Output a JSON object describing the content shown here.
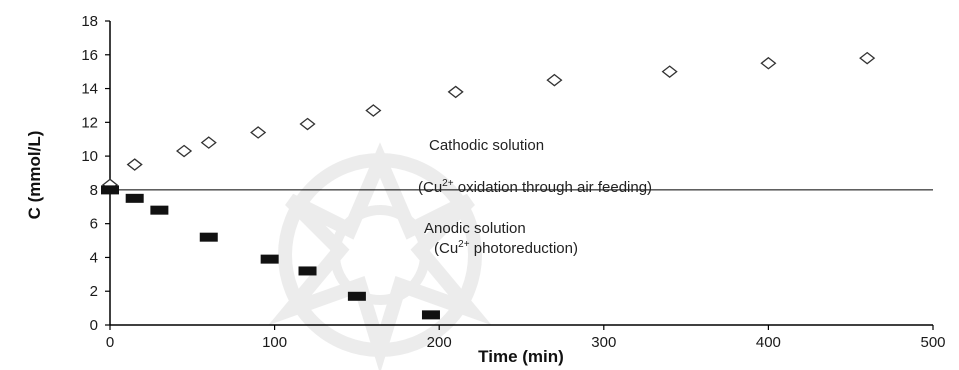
{
  "chart_data": {
    "type": "scatter",
    "xlabel": "Time (min)",
    "ylabel": "C (mmol/L)",
    "xlim": [
      0,
      500
    ],
    "ylim": [
      0,
      18
    ],
    "xticks": [
      0,
      100,
      200,
      300,
      400,
      500
    ],
    "yticks": [
      0,
      2,
      4,
      6,
      8,
      10,
      12,
      14,
      16,
      18
    ],
    "grid": false,
    "legend": "none",
    "reference_line": {
      "y": 8,
      "color": "#000000"
    },
    "series": [
      {
        "marker": "open-diamond",
        "color": "#333333",
        "points": [
          [
            0,
            8.3
          ],
          [
            15,
            9.5
          ],
          [
            45,
            10.3
          ],
          [
            60,
            10.8
          ],
          [
            90,
            11.4
          ],
          [
            120,
            11.9
          ],
          [
            160,
            12.7
          ],
          [
            210,
            13.8
          ],
          [
            270,
            14.5
          ],
          [
            340,
            15.0
          ],
          [
            400,
            15.5
          ],
          [
            460,
            15.8
          ]
        ]
      },
      {
        "marker": "filled-rectangle",
        "color": "#111111",
        "points": [
          [
            0,
            8.0
          ],
          [
            15,
            7.5
          ],
          [
            30,
            6.8
          ],
          [
            60,
            5.2
          ],
          [
            97,
            3.9
          ],
          [
            120,
            3.2
          ],
          [
            150,
            1.7
          ],
          [
            195,
            0.6
          ]
        ]
      }
    ],
    "annotations": [
      {
        "line1": "Cathodic solution",
        "line2_pre": "(Cu",
        "line2_sup": "2+",
        "line2_post": " oxidation through air feeding)"
      },
      {
        "line1": "Anodic solution",
        "line2_pre": "(Cu",
        "line2_sup": "2+",
        "line2_post": " photoreduction)"
      }
    ]
  }
}
